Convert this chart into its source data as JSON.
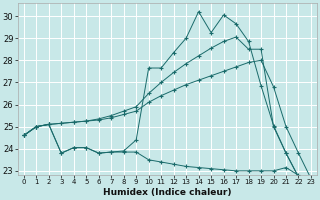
{
  "xlabel": "Humidex (Indice chaleur)",
  "bg_color": "#c8e8e8",
  "grid_color": "#ffffff",
  "line_color": "#1a6b6b",
  "xlim": [
    -0.5,
    23.5
  ],
  "ylim": [
    22.8,
    30.6
  ],
  "yticks": [
    23,
    24,
    25,
    26,
    27,
    28,
    29,
    30
  ],
  "xticks": [
    0,
    1,
    2,
    3,
    4,
    5,
    6,
    7,
    8,
    9,
    10,
    11,
    12,
    13,
    14,
    15,
    16,
    17,
    18,
    19,
    20,
    21,
    22,
    23
  ],
  "lines": [
    {
      "x": [
        0,
        1,
        2,
        3,
        4,
        5,
        6,
        7,
        8,
        9,
        10,
        11,
        12,
        13,
        14,
        15,
        16,
        17,
        18,
        19,
        20,
        21,
        22,
        23
      ],
      "y": [
        24.6,
        25.0,
        25.1,
        23.8,
        24.05,
        24.05,
        23.8,
        23.85,
        23.9,
        24.4,
        27.65,
        27.65,
        28.35,
        29.0,
        30.2,
        29.25,
        30.05,
        29.65,
        28.85,
        26.85,
        25.05,
        23.8,
        22.72,
        22.65
      ]
    },
    {
      "x": [
        0,
        1,
        2,
        3,
        4,
        5,
        6,
        7,
        8,
        9,
        10,
        11,
        12,
        13,
        14,
        15,
        16,
        17,
        18,
        19,
        20,
        21,
        22,
        23
      ],
      "y": [
        24.6,
        25.0,
        25.1,
        25.15,
        25.2,
        25.25,
        25.35,
        25.5,
        25.7,
        25.9,
        26.5,
        27.0,
        27.45,
        27.85,
        28.2,
        28.55,
        28.85,
        29.05,
        28.5,
        28.5,
        25.0,
        23.8,
        22.72,
        22.65
      ]
    },
    {
      "x": [
        0,
        1,
        2,
        3,
        4,
        5,
        6,
        7,
        8,
        9,
        10,
        11,
        12,
        13,
        14,
        15,
        16,
        17,
        18,
        19,
        20,
        21,
        22,
        23
      ],
      "y": [
        24.6,
        25.0,
        25.1,
        25.15,
        25.2,
        25.25,
        25.3,
        25.4,
        25.55,
        25.7,
        26.1,
        26.4,
        26.65,
        26.9,
        27.1,
        27.3,
        27.5,
        27.7,
        27.9,
        28.0,
        26.8,
        25.0,
        23.8,
        22.65
      ]
    },
    {
      "x": [
        0,
        1,
        2,
        3,
        4,
        5,
        6,
        7,
        8,
        9,
        10,
        11,
        12,
        13,
        14,
        15,
        16,
        17,
        18,
        19,
        20,
        21,
        22,
        23
      ],
      "y": [
        24.6,
        25.0,
        25.1,
        23.8,
        24.05,
        24.05,
        23.8,
        23.85,
        23.85,
        23.85,
        23.5,
        23.4,
        23.3,
        23.2,
        23.15,
        23.1,
        23.05,
        23.0,
        23.0,
        23.0,
        23.0,
        23.15,
        22.8,
        22.65
      ]
    }
  ]
}
